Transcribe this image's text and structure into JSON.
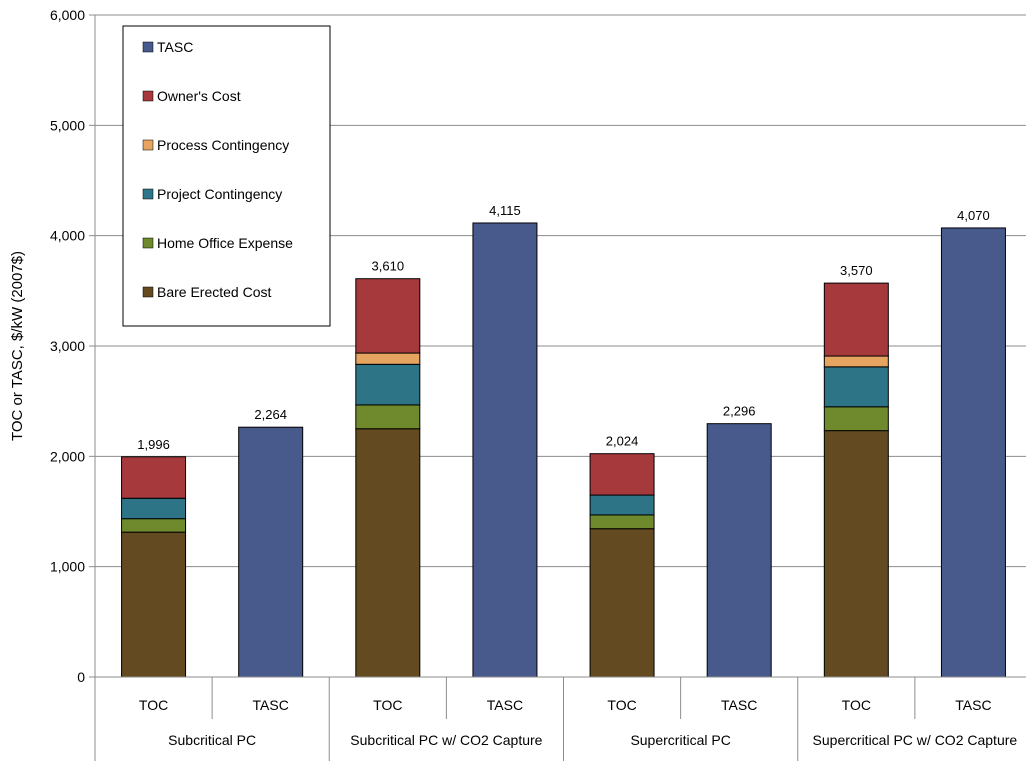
{
  "chart_data": {
    "type": "bar",
    "stacked": true,
    "ylabel": "TOC or TASC, $/kW (2007$)",
    "ylim": [
      0,
      6000
    ],
    "yticks": [
      0,
      1000,
      2000,
      3000,
      4000,
      5000,
      6000
    ],
    "ytick_labels": [
      "0",
      "1,000",
      "2,000",
      "3,000",
      "4,000",
      "5,000",
      "6,000"
    ],
    "grid": true,
    "legend_position": "top-left",
    "groups": [
      "Subcritical PC",
      "Subcritical PC w/ CO2 Capture",
      "Supercritical PC",
      "Supercritical PC w/ CO2 Capture"
    ],
    "categories": [
      "TOC",
      "TASC",
      "TOC",
      "TASC",
      "TOC",
      "TASC",
      "TOC",
      "TASC"
    ],
    "category_group": [
      0,
      0,
      1,
      1,
      2,
      2,
      3,
      3
    ],
    "totals": [
      "1,996",
      "2,264",
      "3,610",
      "4,115",
      "2,024",
      "2,296",
      "3,570",
      "4,070"
    ],
    "series": [
      {
        "name": "Bare Erected Cost",
        "color": "#634a21",
        "values": [
          1313,
          0,
          2250,
          0,
          1344,
          0,
          2233,
          0
        ]
      },
      {
        "name": "Home Office Expense",
        "color": "#6e8a2c",
        "values": [
          122,
          0,
          216,
          0,
          125,
          0,
          216,
          0
        ]
      },
      {
        "name": "Project Contingency",
        "color": "#2e7487",
        "values": [
          185,
          0,
          368,
          0,
          180,
          0,
          362,
          0
        ]
      },
      {
        "name": "Process Contingency",
        "color": "#e5a561",
        "values": [
          0,
          0,
          102,
          0,
          0,
          0,
          98,
          0
        ]
      },
      {
        "name": "Owner's Cost",
        "color": "#a6393c",
        "values": [
          376,
          0,
          674,
          0,
          375,
          0,
          661,
          0
        ]
      },
      {
        "name": "TASC",
        "color": "#485a8c",
        "values": [
          0,
          2264,
          0,
          4115,
          0,
          2296,
          0,
          4070
        ]
      }
    ],
    "legend_order": [
      5,
      4,
      3,
      2,
      1,
      0
    ]
  }
}
